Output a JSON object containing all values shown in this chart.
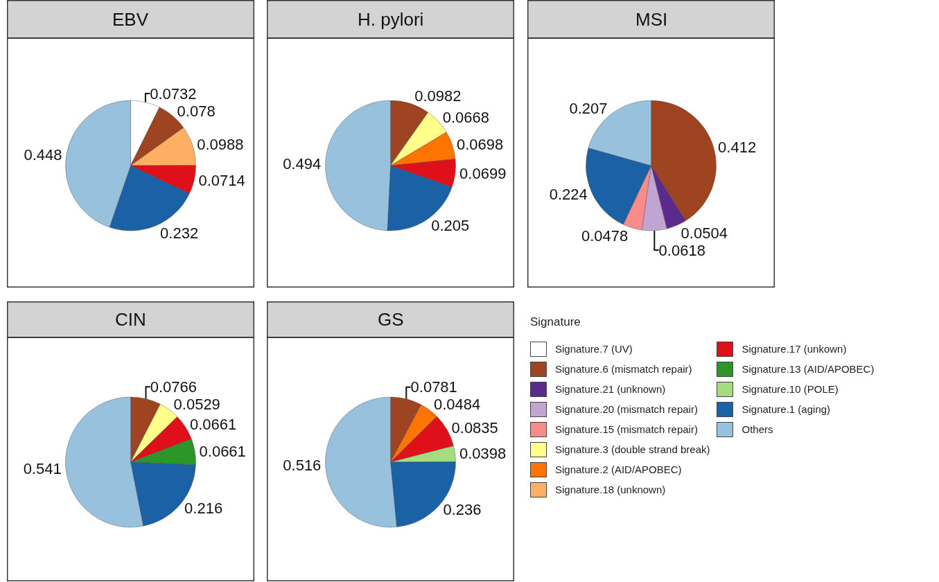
{
  "chart_data": [
    {
      "type": "pie",
      "title": "EBV",
      "data_labels": true,
      "legend": "bottom right",
      "legend_title": "Signature",
      "categories": [
        "Signature.7 (UV)",
        "Signature.6 (mismatch repair)",
        "Signature.21 (unknown)",
        "Signature.20 (mismatch repair)",
        "Signature.15 (mismatch repair)",
        "Signature.3 (double strand break)",
        "Signature.2 (AID/APOBEC)",
        "Signature.18 (unknown)",
        "Signature.17 (unkown)",
        "Signature.13 (AID/APOBEC)",
        "Signature.10 (POLE)",
        "Signature.1 (aging)",
        "Others"
      ],
      "values": [
        0.0732,
        0.078,
        null,
        null,
        null,
        null,
        null,
        0.0988,
        0.0714,
        null,
        null,
        0.232,
        0.448
      ],
      "colors": [
        "#ffffff",
        "#9e4420",
        "#5a2a8c",
        "#c0a4d2",
        "#f98b8b",
        "#ffff8a",
        "#ff7400",
        "#fdb063",
        "#e0101a",
        "#2c9628",
        "#a6dc80",
        "#1a61a6",
        "#97c1dc"
      ]
    },
    {
      "type": "pie",
      "title": "H. pylori",
      "data_labels": true,
      "categories": [
        null,
        null,
        null,
        null,
        null,
        null
      ],
      "values": [
        0.0982,
        0.0668,
        0.0698,
        0.0699,
        0.205,
        0.494
      ],
      "colors": [
        "#9e4420",
        "#ffff8a",
        "#ff7400",
        "#e0101a",
        "#1a61a6",
        "#97c1dc"
      ]
    },
    {
      "type": "pie",
      "title": "MSI",
      "data_labels": true,
      "categories": [
        null,
        null,
        null,
        null,
        null,
        null
      ],
      "values": [
        0.412,
        0.0504,
        0.0618,
        0.0478,
        0.224,
        0.207
      ],
      "colors": [
        "#9e4420",
        "#5a2a8c",
        "#c0a4d2",
        "#f98b8b",
        "#1a61a6",
        "#97c1dc"
      ]
    },
    {
      "type": "pie",
      "title": "CIN",
      "data_labels": true,
      "categories": [
        null,
        null,
        null,
        null,
        null,
        null
      ],
      "values": [
        0.0766,
        0.0529,
        0.0661,
        0.0661,
        0.216,
        0.541
      ],
      "colors": [
        "#9e4420",
        "#ffff8a",
        "#e0101a",
        "#2c9628",
        "#1a61a6",
        "#97c1dc"
      ]
    },
    {
      "type": "pie",
      "title": "GS",
      "data_labels": true,
      "categories": [
        null,
        null,
        null,
        null,
        null,
        null
      ],
      "values": [
        0.0781,
        0.0484,
        0.0835,
        0.0398,
        0.236,
        0.516
      ],
      "colors": [
        "#9e4420",
        "#ff7400",
        "#e0101a",
        "#a6dc80",
        "#1a61a6",
        "#97c1dc"
      ]
    }
  ]
}
